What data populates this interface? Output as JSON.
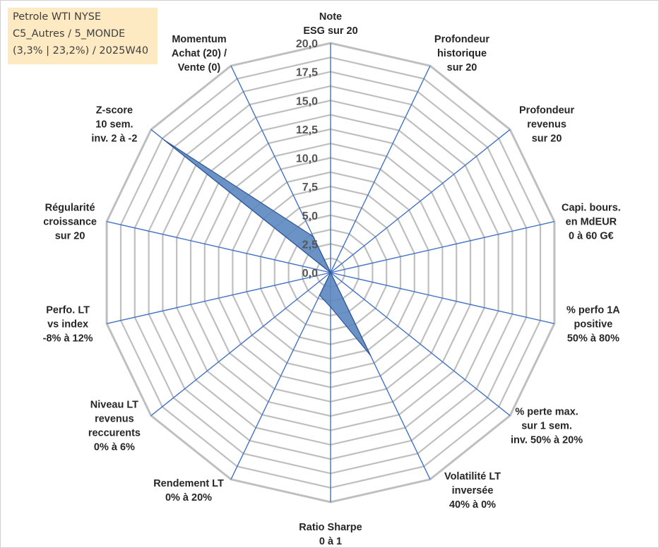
{
  "legend_box": {
    "line1": "Petrole WTI NYSE",
    "line2": "C5_Autres / 5_MONDE",
    "line3": "(3,3% | 23,2%) / 2025W40"
  },
  "colors": {
    "grid": "#bfbfbf",
    "spokes": "#4472c4",
    "fill": "#5b87c0",
    "fill_stroke": "#2f5597",
    "legend_bg": "#fde9c2"
  },
  "chart_data": {
    "type": "radar",
    "title": "Petrole WTI NYSE",
    "rmin": 0,
    "rmax": 20,
    "tick_step": 2.5,
    "tick_labels": [
      "0,0",
      "2,5",
      "5,0",
      "7,5",
      "10,0",
      "12,5",
      "15,0",
      "17,5",
      "20,0"
    ],
    "minor_rings_per_tick": 2,
    "axes": [
      {
        "label": [
          "Note",
          "ESG sur 20"
        ],
        "value": 0
      },
      {
        "label": [
          "Profondeur",
          "historique",
          "sur 20"
        ],
        "value": 0
      },
      {
        "label": [
          "Profondeur",
          "revenus",
          "sur 20"
        ],
        "value": 0
      },
      {
        "label": [
          "Capi. bours.",
          "en MdEUR",
          "0 à 60 G€"
        ],
        "value": 0
      },
      {
        "label": [
          "% perfo 1A",
          "positive",
          "50% à 80%"
        ],
        "value": 0
      },
      {
        "label": [
          "% perte max.",
          "sur 1 sem.",
          "inv. 50% à 20%"
        ],
        "value": 0
      },
      {
        "label": [
          "Volatilité LT",
          "inversée",
          "40% à 0%"
        ],
        "value": 8
      },
      {
        "label": [
          "Ratio Sharpe",
          "0 à 1"
        ],
        "value": 3
      },
      {
        "label": [
          "Rendement LT",
          "0% à 20%"
        ],
        "value": 2.2
      },
      {
        "label": [
          "Niveau LT",
          "revenus",
          "reccurents",
          "0% à 6%"
        ],
        "value": 0
      },
      {
        "label": [
          "Perfo. LT",
          "vs index",
          "-8% à 12%"
        ],
        "value": 0
      },
      {
        "label": [
          "Régularité",
          "croissance",
          "sur 20"
        ],
        "value": 0
      },
      {
        "label": [
          "Z-score",
          "10 sem.",
          "inv. 2 à -2"
        ],
        "value": 18.5
      },
      {
        "label": [
          "Momentum",
          "Achat (20) /",
          "Vente (0)"
        ],
        "value": 3.5
      }
    ]
  }
}
